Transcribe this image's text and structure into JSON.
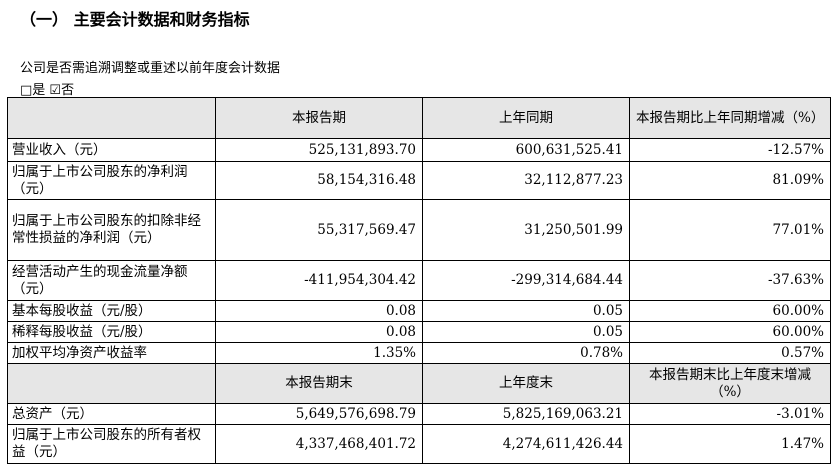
{
  "section_title": "（一） 主要会计数据和财务指标",
  "question": "公司是否需追溯调整或重述以前年度会计数据",
  "answer": "□是 ☑否",
  "header1": [
    "",
    "本报告期",
    "上年同期",
    "本报告期比上年同期增减（%）"
  ],
  "rows1": [
    {
      "label": "营业收入（元）",
      "current": "525,131,893.70",
      "prior": "600,631,525.41",
      "change": "-12.57%"
    },
    {
      "label": "归属于上市公司股东的净利润（元）",
      "current": "58,154,316.48",
      "prior": "32,112,877.23",
      "change": "81.09%"
    },
    {
      "label": "归属于上市公司股东的扣除非经常性损益的净利润（元）",
      "current": "55,317,569.47",
      "prior": "31,250,501.99",
      "change": "77.01%"
    },
    {
      "label": "经营活动产生的现金流量净额（元）",
      "current": "-411,954,304.42",
      "prior": "-299,314,684.44",
      "change": "-37.63%"
    },
    {
      "label": "基本每股收益（元/股）",
      "current": "0.08",
      "prior": "0.05",
      "change": "60.00%"
    },
    {
      "label": "稀释每股收益（元/股）",
      "current": "0.08",
      "prior": "0.05",
      "change": "60.00%"
    },
    {
      "label": "加权平均净资产收益率",
      "current": "1.35%",
      "prior": "0.78%",
      "change": "0.57%"
    }
  ],
  "header2": [
    "",
    "本报告期末",
    "上年度末",
    "本报告期末比上年度末增减（%）"
  ],
  "rows2": [
    {
      "label": "总资产（元）",
      "current": "5,649,576,698.79",
      "prior": "5,825,169,063.21",
      "change": "-3.01%"
    },
    {
      "label": "归属于上市公司股东的所有者权益（元）",
      "current": "4,337,468,401.72",
      "prior": "4,274,611,426.44",
      "change": "1.47%"
    }
  ]
}
